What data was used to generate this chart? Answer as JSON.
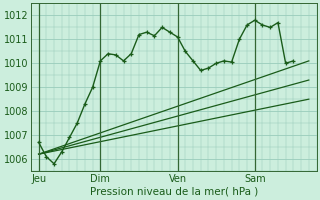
{
  "bg_color": "#cceedd",
  "grid_color": "#99ccbb",
  "line_color": "#1a5c1a",
  "title": "Pression niveau de la mer( hPa )",
  "ylabel_values": [
    1006,
    1007,
    1008,
    1009,
    1010,
    1011,
    1012
  ],
  "ylim": [
    1005.5,
    1012.5
  ],
  "day_labels": [
    "Jeu",
    "Dim",
    "Ven",
    "Sam"
  ],
  "day_positions": [
    0,
    8,
    18,
    28
  ],
  "xlim": [
    -1,
    36
  ],
  "series1_x": [
    0,
    1,
    2,
    3,
    4,
    5,
    6,
    7,
    8,
    9,
    10,
    11,
    12,
    13,
    14,
    15,
    16,
    17,
    18,
    19,
    20,
    21,
    22,
    23,
    24,
    25,
    26,
    27,
    28,
    29,
    30,
    31,
    32,
    33
  ],
  "series1_y": [
    1006.7,
    1006.1,
    1005.8,
    1006.3,
    1006.9,
    1007.5,
    1008.3,
    1009.0,
    1010.1,
    1010.4,
    1010.35,
    1010.1,
    1010.4,
    1011.2,
    1011.3,
    1011.15,
    1011.5,
    1011.3,
    1011.1,
    1010.5,
    1010.1,
    1009.7,
    1009.8,
    1010.0,
    1010.1,
    1010.05,
    1011.0,
    1011.6,
    1011.8,
    1011.6,
    1011.5,
    1011.7,
    1010.0,
    1010.1
  ],
  "series2_x": [
    0,
    35
  ],
  "series2_y": [
    1006.2,
    1010.1
  ],
  "series3_x": [
    0,
    35
  ],
  "series3_y": [
    1006.2,
    1009.3
  ],
  "series4_x": [
    0,
    35
  ],
  "series4_y": [
    1006.2,
    1008.5
  ]
}
